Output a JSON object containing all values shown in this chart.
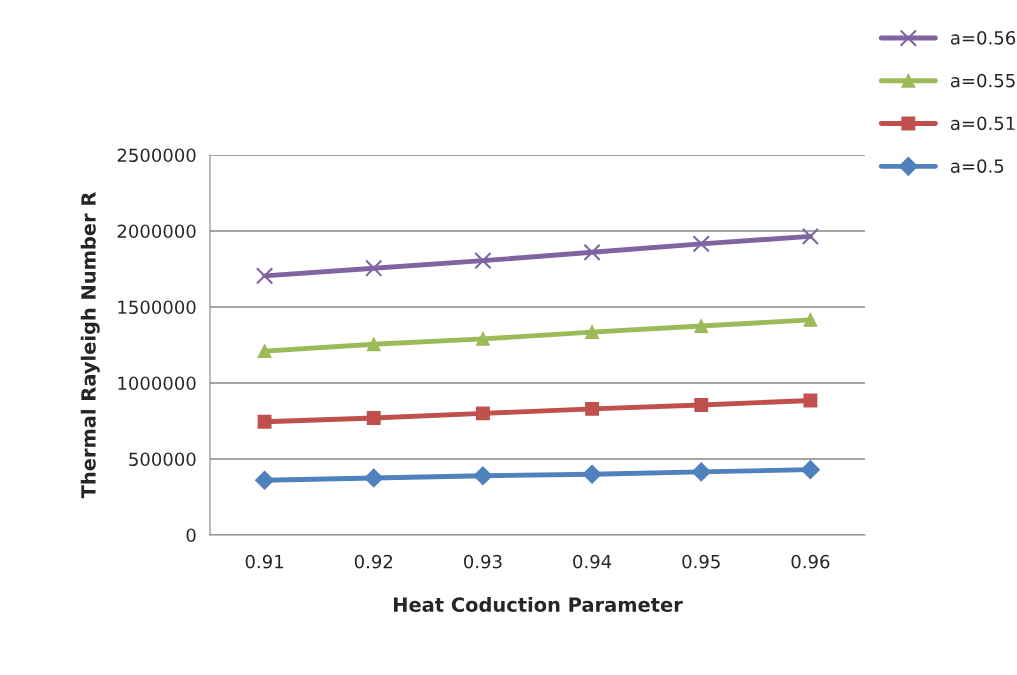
{
  "chart_data": {
    "type": "line",
    "xlabel": "Heat Coduction Parameter",
    "ylabel": "Thermal Rayleigh Number R",
    "categories": [
      "0.91",
      "0.92",
      "0.93",
      "0.94",
      "0.95",
      "0.96"
    ],
    "series": [
      {
        "name": "a=0.56",
        "color": "#8064a2",
        "marker": "cross",
        "values": [
          1705000,
          1755000,
          1805000,
          1860000,
          1915000,
          1965000
        ]
      },
      {
        "name": "a=0.55",
        "color": "#9bbb59",
        "marker": "triangle",
        "values": [
          1210000,
          1255000,
          1290000,
          1335000,
          1375000,
          1415000
        ]
      },
      {
        "name": "a=0.51",
        "color": "#c0504d",
        "marker": "square",
        "values": [
          745000,
          770000,
          800000,
          830000,
          855000,
          885000
        ]
      },
      {
        "name": "a=0.5",
        "color": "#4f81bd",
        "marker": "diamond",
        "values": [
          360000,
          375000,
          390000,
          400000,
          415000,
          430000
        ]
      }
    ],
    "ylim": [
      0,
      2500000
    ],
    "yticks": [
      0,
      500000,
      1000000,
      1500000,
      2000000,
      2500000
    ],
    "grid": "y",
    "legend": "top right"
  }
}
